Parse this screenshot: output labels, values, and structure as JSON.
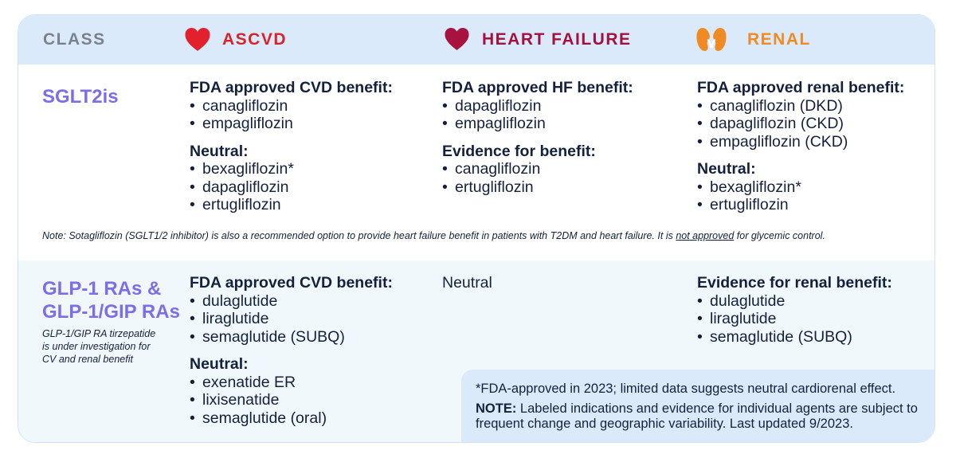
{
  "header": {
    "class": "CLASS",
    "ascvd": "ASCVD",
    "heart_failure": "HEART FAILURE",
    "renal": "RENAL",
    "icons": {
      "ascvd": "heart-icon",
      "heart_failure": "heart-icon",
      "renal": "kidneys-icon"
    },
    "colors": {
      "ascvd": "#d8232a",
      "heart_failure": "#a3123f",
      "renal": "#f08a24",
      "class": "#7a828e"
    }
  },
  "sglt2": {
    "name": "SGLT2is",
    "ascvd": {
      "title1": "FDA approved CVD benefit:",
      "items1": [
        "canagliflozin",
        "empagliflozin"
      ],
      "title2": "Neutral:",
      "items2": [
        "bexagliflozin*",
        "dapagliflozin",
        "ertugliflozin"
      ]
    },
    "hf": {
      "title1": "FDA approved HF benefit:",
      "items1": [
        "dapagliflozin",
        "empagliflozin"
      ],
      "title2": "Evidence for benefit:",
      "items2": [
        "canagliflozin",
        "ertugliflozin"
      ]
    },
    "renal": {
      "title1": "FDA approved renal benefit:",
      "items1": [
        "canagliflozin (DKD)",
        "dapagliflozin (CKD)",
        "empagliflozin (CKD)"
      ],
      "title2": "Neutral:",
      "items2": [
        "bexagliflozin*",
        "ertugliflozin"
      ]
    },
    "note": {
      "before": "Note: Sotagliflozin (SGLT1/2 inhibitor) is also a recommended option to provide heart failure benefit in patients with T2DM and heart failure. It is ",
      "underlined": "not approved",
      "after": " for glycemic control."
    }
  },
  "glp1": {
    "name_line1": "GLP-1 RAs &",
    "name_line2": "GLP-1/GIP RAs",
    "subnote_line1": "GLP-1/GIP RA tirzepatide",
    "subnote_line2": "is under investigation for",
    "subnote_line3": "CV and renal benefit",
    "ascvd": {
      "title1": "FDA approved CVD benefit:",
      "items1": [
        "dulaglutide",
        "liraglutide",
        "semaglutide (SUBQ)"
      ],
      "title2": "Neutral:",
      "items2": [
        "exenatide ER",
        "lixisenatide",
        "semaglutide (oral)"
      ]
    },
    "hf": {
      "text": "Neutral"
    },
    "renal": {
      "title1": "Evidence for renal benefit:",
      "items1": [
        "dulaglutide",
        "liraglutide",
        "semaglutide (SUBQ)"
      ]
    }
  },
  "footnote": {
    "line1": "*FDA-approved in 2023; limited data suggests neutral cardiorenal effect.",
    "note_label": "NOTE:",
    "note_text": " Labeled indications and evidence for individual agents are subject to frequent change and geographic variability. Last updated 9/2023."
  }
}
